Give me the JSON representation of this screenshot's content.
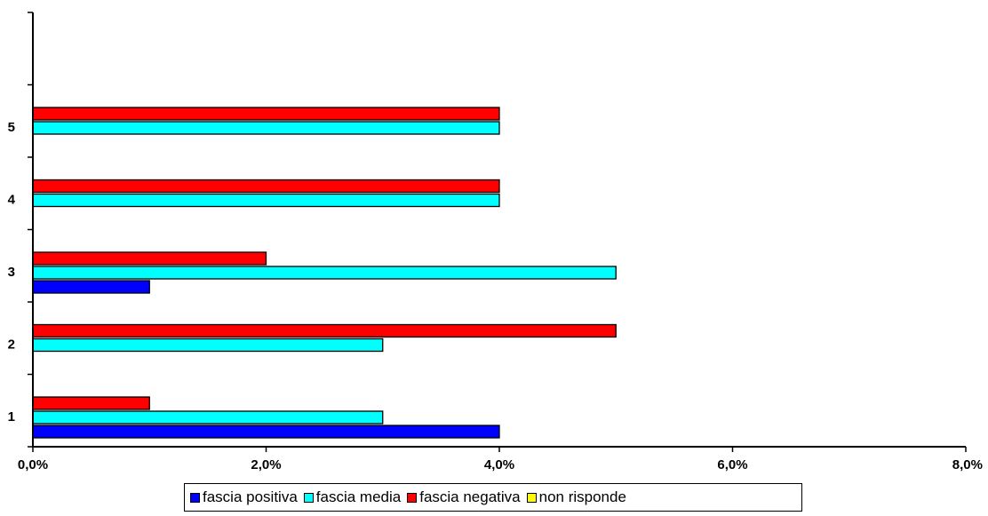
{
  "colors": {
    "fascia_positiva": "#0000ff",
    "fascia_media": "#00ffff",
    "fascia_negativa": "#ff0000",
    "non_risponde": "#ffff00"
  },
  "chart_data": {
    "type": "bar",
    "orientation": "horizontal",
    "categories": [
      "1",
      "2",
      "3",
      "4",
      "5"
    ],
    "series": [
      {
        "name": "fascia positiva",
        "color": "#0000ff",
        "values": [
          4,
          0,
          1,
          0,
          0
        ]
      },
      {
        "name": "fascia media",
        "color": "#00ffff",
        "values": [
          3,
          3,
          5,
          4,
          4
        ]
      },
      {
        "name": "fascia negativa",
        "color": "#ff0000",
        "values": [
          1,
          5,
          2,
          4,
          4
        ]
      },
      {
        "name": "non risponde",
        "color": "#ffff00",
        "values": [
          0,
          0,
          0,
          0,
          0
        ]
      }
    ],
    "x_ticks": [
      "0,0%",
      "2,0%",
      "4,0%",
      "6,0%",
      "8,0%"
    ],
    "xlim": [
      0,
      8
    ],
    "x_unit": "%",
    "grid": false,
    "legend_position": "bottom",
    "title": "",
    "xlabel": "",
    "ylabel": ""
  }
}
